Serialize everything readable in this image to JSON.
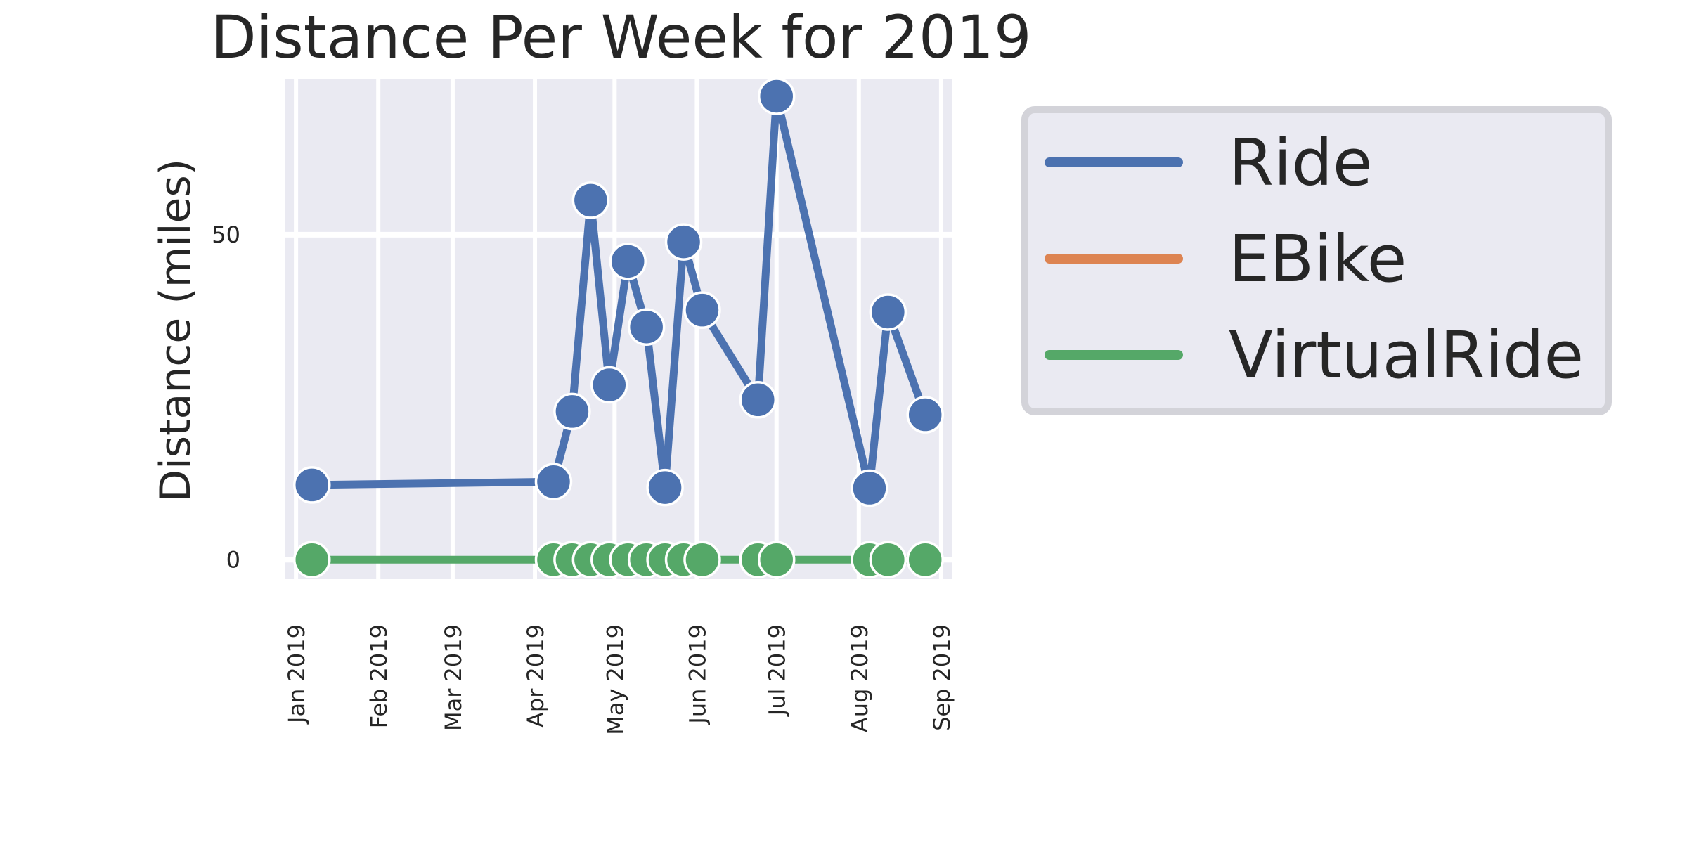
{
  "chart_data": {
    "type": "line",
    "title": "Distance Per Week for 2019",
    "xlabel": "",
    "ylabel": "Distance (miles)",
    "x_axis": {
      "type": "date",
      "ticks": [
        {
          "date": "2019-01-01",
          "label": "Jan 2019"
        },
        {
          "date": "2019-02-01",
          "label": "Feb 2019"
        },
        {
          "date": "2019-03-01",
          "label": "Mar 2019"
        },
        {
          "date": "2019-04-01",
          "label": "Apr 2019"
        },
        {
          "date": "2019-05-01",
          "label": "May 2019"
        },
        {
          "date": "2019-06-01",
          "label": "Jun 2019"
        },
        {
          "date": "2019-07-01",
          "label": "Jul 2019"
        },
        {
          "date": "2019-08-01",
          "label": "Aug 2019"
        },
        {
          "date": "2019-09-01",
          "label": "Sep 2019"
        }
      ],
      "range": [
        "2018-12-28",
        "2019-09-05"
      ]
    },
    "y_axis": {
      "ticks": [
        {
          "value": 0,
          "label": "0"
        },
        {
          "value": 50,
          "label": "50"
        }
      ],
      "ylim": [
        -3,
        74
      ]
    },
    "grid": true,
    "legend_position": "outside-right",
    "series": [
      {
        "name": "Ride",
        "color": "#4c72b0",
        "x": [
          "2019-01-07",
          "2019-04-08",
          "2019-04-15",
          "2019-04-22",
          "2019-04-29",
          "2019-05-06",
          "2019-05-13",
          "2019-05-20",
          "2019-05-27",
          "2019-06-03",
          "2019-06-24",
          "2019-07-01",
          "2019-08-05",
          "2019-08-12",
          "2019-08-26"
        ],
        "y": [
          11.5,
          12.0,
          22.8,
          55.3,
          26.9,
          45.9,
          35.8,
          11.1,
          48.9,
          38.4,
          24.6,
          71.3,
          11.0,
          38.1,
          22.3
        ]
      },
      {
        "name": "EBike",
        "color": "#dd8452",
        "x": [],
        "y": []
      },
      {
        "name": "VirtualRide",
        "color": "#55a868",
        "x": [
          "2019-01-07",
          "2019-04-08",
          "2019-04-15",
          "2019-04-22",
          "2019-04-29",
          "2019-05-06",
          "2019-05-13",
          "2019-05-20",
          "2019-05-27",
          "2019-06-03",
          "2019-06-24",
          "2019-07-01",
          "2019-08-05",
          "2019-08-12",
          "2019-08-26"
        ],
        "y": [
          0,
          0,
          0,
          0,
          0,
          0,
          0,
          0,
          0,
          0,
          0,
          0,
          0,
          0,
          0
        ]
      }
    ]
  }
}
